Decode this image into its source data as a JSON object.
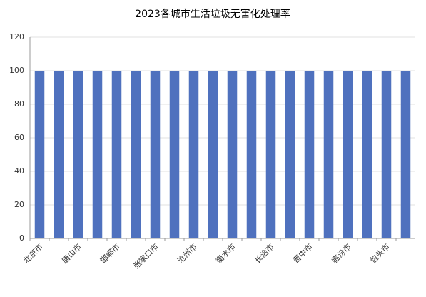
{
  "chart_data": {
    "type": "bar",
    "title": "2023各城市生活垃圾无害化处理率",
    "categories": [
      "北京市",
      null,
      "唐山市",
      null,
      "邯郸市",
      null,
      "张家口市",
      null,
      "沧州市",
      null,
      "衡水市",
      null,
      "长治市",
      null,
      "晋中市",
      null,
      "临汾市",
      null,
      "包头市",
      null
    ],
    "values": [
      100,
      100,
      100,
      100,
      100,
      100,
      100,
      100,
      100,
      100,
      100,
      100,
      100,
      100,
      100,
      100,
      100,
      100,
      100,
      100
    ],
    "color": "#4f71be",
    "ylim": [
      0,
      120
    ],
    "yticks": [
      0,
      20,
      40,
      60,
      80,
      100,
      120
    ],
    "grid": true
  }
}
